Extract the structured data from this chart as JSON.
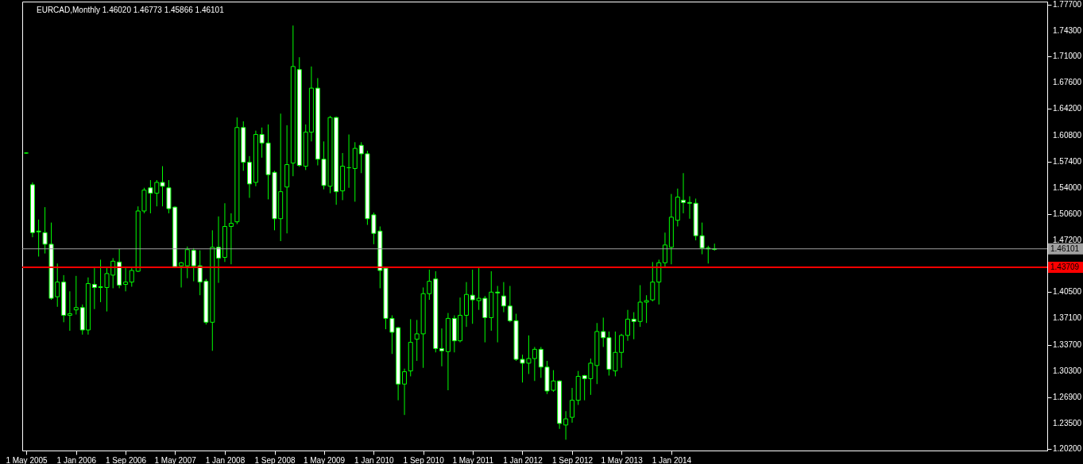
{
  "chart_data": {
    "type": "candlestick",
    "title": "EURCAD,Monthly  1.46020 1.46773 1.45866 1.46101",
    "color": "#00ff00",
    "x": [
      "2005-05",
      "2005-06",
      "2005-07",
      "2005-08",
      "2005-09",
      "2005-10",
      "2005-11",
      "2005-12",
      "2006-01",
      "2006-02",
      "2006-03",
      "2006-04",
      "2006-05",
      "2006-06",
      "2006-07",
      "2006-08",
      "2006-09",
      "2006-10",
      "2006-11",
      "2006-12",
      "2007-01",
      "2007-02",
      "2007-03",
      "2007-04",
      "2007-05",
      "2007-06",
      "2007-07",
      "2007-08",
      "2007-09",
      "2007-10",
      "2007-11",
      "2007-12",
      "2008-01",
      "2008-02",
      "2008-03",
      "2008-04",
      "2008-05",
      "2008-06",
      "2008-07",
      "2008-08",
      "2008-09",
      "2008-10",
      "2008-11",
      "2008-12",
      "2009-01",
      "2009-02",
      "2009-03",
      "2009-04",
      "2009-05",
      "2009-06",
      "2009-07",
      "2009-08",
      "2009-09",
      "2009-10",
      "2009-11",
      "2009-12",
      "2010-01",
      "2010-02",
      "2010-03",
      "2010-04",
      "2010-05",
      "2010-06",
      "2010-07",
      "2010-08",
      "2010-09",
      "2010-10",
      "2010-11",
      "2010-12",
      "2011-01",
      "2011-02",
      "2011-03",
      "2011-04",
      "2011-05",
      "2011-06",
      "2011-07",
      "2011-08",
      "2011-09",
      "2011-10",
      "2011-11",
      "2011-12",
      "2012-01",
      "2012-02",
      "2012-03",
      "2012-04",
      "2012-05",
      "2012-06",
      "2012-07",
      "2012-08",
      "2012-09",
      "2012-10",
      "2012-11",
      "2012-12",
      "2013-01",
      "2013-02",
      "2013-03",
      "2013-04",
      "2013-05",
      "2013-06",
      "2013-07",
      "2013-08",
      "2013-09",
      "2013-10",
      "2013-11",
      "2013-12",
      "2014-01",
      "2014-02",
      "2014-03",
      "2014-04",
      "2014-05",
      "2014-06",
      "2014-07",
      "2014-08"
    ],
    "ohlc": [
      [
        1.585,
        1.586,
        1.584,
        1.585
      ],
      [
        1.544,
        1.547,
        1.476,
        1.482
      ],
      [
        1.484,
        1.499,
        1.451,
        1.483
      ],
      [
        1.482,
        1.515,
        1.455,
        1.467
      ],
      [
        1.467,
        1.495,
        1.395,
        1.397
      ],
      [
        1.399,
        1.442,
        1.386,
        1.418
      ],
      [
        1.418,
        1.427,
        1.366,
        1.375
      ],
      [
        1.375,
        1.406,
        1.355,
        1.377
      ],
      [
        1.382,
        1.426,
        1.376,
        1.385
      ],
      [
        1.385,
        1.389,
        1.35,
        1.356
      ],
      [
        1.356,
        1.424,
        1.35,
        1.416
      ],
      [
        1.415,
        1.436,
        1.383,
        1.411
      ],
      [
        1.411,
        1.447,
        1.392,
        1.412
      ],
      [
        1.411,
        1.436,
        1.38,
        1.429
      ],
      [
        1.427,
        1.449,
        1.41,
        1.445
      ],
      [
        1.444,
        1.461,
        1.41,
        1.414
      ],
      [
        1.415,
        1.436,
        1.406,
        1.418
      ],
      [
        1.418,
        1.436,
        1.412,
        1.433
      ],
      [
        1.432,
        1.516,
        1.431,
        1.51
      ],
      [
        1.51,
        1.54,
        1.507,
        1.537
      ],
      [
        1.54,
        1.55,
        1.507,
        1.533
      ],
      [
        1.533,
        1.55,
        1.516,
        1.547
      ],
      [
        1.547,
        1.568,
        1.516,
        1.542
      ],
      [
        1.54,
        1.55,
        1.507,
        1.513
      ],
      [
        1.515,
        1.516,
        1.436,
        1.438
      ],
      [
        1.439,
        1.444,
        1.411,
        1.443
      ],
      [
        1.439,
        1.464,
        1.423,
        1.46
      ],
      [
        1.459,
        1.462,
        1.419,
        1.439
      ],
      [
        1.439,
        1.459,
        1.401,
        1.418
      ],
      [
        1.419,
        1.422,
        1.363,
        1.366
      ],
      [
        1.366,
        1.485,
        1.329,
        1.463
      ],
      [
        1.463,
        1.503,
        1.417,
        1.449
      ],
      [
        1.45,
        1.52,
        1.444,
        1.49
      ],
      [
        1.49,
        1.507,
        1.441,
        1.494
      ],
      [
        1.496,
        1.631,
        1.493,
        1.618
      ],
      [
        1.618,
        1.626,
        1.562,
        1.573
      ],
      [
        1.573,
        1.581,
        1.527,
        1.545
      ],
      [
        1.547,
        1.614,
        1.542,
        1.609
      ],
      [
        1.609,
        1.618,
        1.579,
        1.598
      ],
      [
        1.598,
        1.622,
        1.525,
        1.557
      ],
      [
        1.56,
        1.562,
        1.485,
        1.5
      ],
      [
        1.5,
        1.636,
        1.471,
        1.535
      ],
      [
        1.541,
        1.621,
        1.481,
        1.57
      ],
      [
        1.572,
        1.75,
        1.555,
        1.697
      ],
      [
        1.693,
        1.709,
        1.567,
        1.569
      ],
      [
        1.568,
        1.622,
        1.563,
        1.612
      ],
      [
        1.612,
        1.697,
        1.6,
        1.669
      ],
      [
        1.669,
        1.682,
        1.569,
        1.577
      ],
      [
        1.577,
        1.6,
        1.538,
        1.543
      ],
      [
        1.542,
        1.633,
        1.533,
        1.631
      ],
      [
        1.631,
        1.632,
        1.518,
        1.535
      ],
      [
        1.536,
        1.585,
        1.524,
        1.568
      ],
      [
        1.566,
        1.609,
        1.54,
        1.566
      ],
      [
        1.565,
        1.599,
        1.522,
        1.591
      ],
      [
        1.595,
        1.599,
        1.559,
        1.584
      ],
      [
        1.584,
        1.588,
        1.492,
        1.5
      ],
      [
        1.505,
        1.508,
        1.467,
        1.481
      ],
      [
        1.484,
        1.49,
        1.41,
        1.433
      ],
      [
        1.436,
        1.436,
        1.357,
        1.371
      ],
      [
        1.371,
        1.375,
        1.325,
        1.353
      ],
      [
        1.359,
        1.36,
        1.265,
        1.286
      ],
      [
        1.286,
        1.306,
        1.246,
        1.302
      ],
      [
        1.303,
        1.37,
        1.296,
        1.34
      ],
      [
        1.344,
        1.369,
        1.316,
        1.351
      ],
      [
        1.351,
        1.411,
        1.307,
        1.403
      ],
      [
        1.403,
        1.434,
        1.395,
        1.419
      ],
      [
        1.422,
        1.432,
        1.327,
        1.332
      ],
      [
        1.332,
        1.358,
        1.309,
        1.329
      ],
      [
        1.328,
        1.378,
        1.278,
        1.371
      ],
      [
        1.371,
        1.375,
        1.327,
        1.342
      ],
      [
        1.342,
        1.398,
        1.34,
        1.375
      ],
      [
        1.375,
        1.418,
        1.36,
        1.402
      ],
      [
        1.401,
        1.434,
        1.364,
        1.395
      ],
      [
        1.394,
        1.436,
        1.382,
        1.397
      ],
      [
        1.397,
        1.4,
        1.34,
        1.372
      ],
      [
        1.372,
        1.432,
        1.355,
        1.405
      ],
      [
        1.405,
        1.413,
        1.34,
        1.404
      ],
      [
        1.4,
        1.418,
        1.379,
        1.387
      ],
      [
        1.387,
        1.413,
        1.366,
        1.368
      ],
      [
        1.368,
        1.377,
        1.316,
        1.318
      ],
      [
        1.318,
        1.324,
        1.288,
        1.313
      ],
      [
        1.313,
        1.349,
        1.299,
        1.319
      ],
      [
        1.319,
        1.334,
        1.29,
        1.331
      ],
      [
        1.331,
        1.334,
        1.294,
        1.308
      ],
      [
        1.308,
        1.316,
        1.273,
        1.277
      ],
      [
        1.278,
        1.304,
        1.276,
        1.29
      ],
      [
        1.29,
        1.291,
        1.228,
        1.235
      ],
      [
        1.233,
        1.251,
        1.214,
        1.241
      ],
      [
        1.243,
        1.281,
        1.236,
        1.265
      ],
      [
        1.265,
        1.303,
        1.259,
        1.296
      ],
      [
        1.297,
        1.298,
        1.265,
        1.293
      ],
      [
        1.293,
        1.319,
        1.272,
        1.313
      ],
      [
        1.31,
        1.365,
        1.286,
        1.354
      ],
      [
        1.354,
        1.372,
        1.334,
        1.346
      ],
      [
        1.346,
        1.354,
        1.297,
        1.305
      ],
      [
        1.303,
        1.354,
        1.296,
        1.327
      ],
      [
        1.327,
        1.351,
        1.307,
        1.349
      ],
      [
        1.349,
        1.382,
        1.342,
        1.37
      ],
      [
        1.37,
        1.379,
        1.344,
        1.367
      ],
      [
        1.367,
        1.414,
        1.36,
        1.392
      ],
      [
        1.392,
        1.401,
        1.365,
        1.394
      ],
      [
        1.395,
        1.444,
        1.393,
        1.418
      ],
      [
        1.418,
        1.447,
        1.389,
        1.443
      ],
      [
        1.443,
        1.482,
        1.438,
        1.466
      ],
      [
        1.463,
        1.532,
        1.441,
        1.502
      ],
      [
        1.498,
        1.539,
        1.49,
        1.528
      ],
      [
        1.524,
        1.559,
        1.507,
        1.521
      ],
      [
        1.521,
        1.529,
        1.5,
        1.52
      ],
      [
        1.52,
        1.526,
        1.472,
        1.478
      ],
      [
        1.478,
        1.495,
        1.454,
        1.462
      ],
      [
        1.462,
        1.465,
        1.442,
        1.461
      ],
      [
        1.4602,
        1.46773,
        1.45866,
        1.46101
      ]
    ],
    "xlim": [
      "2005-05",
      "2019-01"
    ],
    "xticks": [
      {
        "value": "2005-05",
        "label": "1 May 2005"
      },
      {
        "value": "2006-01",
        "label": "1 Jan 2006"
      },
      {
        "value": "2006-09",
        "label": "1 Sep 2006"
      },
      {
        "value": "2007-05",
        "label": "1 May 2007"
      },
      {
        "value": "2008-01",
        "label": "1 Jan 2008"
      },
      {
        "value": "2008-09",
        "label": "1 Sep 2008"
      },
      {
        "value": "2009-05",
        "label": "1 May 2009"
      },
      {
        "value": "2010-01",
        "label": "1 Jan 2010"
      },
      {
        "value": "2010-09",
        "label": "1 Sep 2010"
      },
      {
        "value": "2011-05",
        "label": "1 May 2011"
      },
      {
        "value": "2012-01",
        "label": "1 Jan 2012"
      },
      {
        "value": "2012-09",
        "label": "1 Sep 2012"
      },
      {
        "value": "2013-05",
        "label": "1 May 2013"
      },
      {
        "value": "2014-01",
        "label": "1 Jan 2014"
      }
    ],
    "ylim": [
      1.2,
      1.781
    ],
    "yticks": [
      {
        "value": 1.777,
        "label": "1.77700"
      },
      {
        "value": 1.743,
        "label": "1.74300"
      },
      {
        "value": 1.71,
        "label": "1.71000"
      },
      {
        "value": 1.676,
        "label": "1.67600"
      },
      {
        "value": 1.642,
        "label": "1.64200"
      },
      {
        "value": 1.608,
        "label": "1.60800"
      },
      {
        "value": 1.574,
        "label": "1.57400"
      },
      {
        "value": 1.54,
        "label": "1.54000"
      },
      {
        "value": 1.506,
        "label": "1.50600"
      },
      {
        "value": 1.472,
        "label": "1.47200"
      },
      {
        "value": 1.405,
        "label": "1.40500"
      },
      {
        "value": 1.371,
        "label": "1.37100"
      },
      {
        "value": 1.337,
        "label": "1.33700"
      },
      {
        "value": 1.303,
        "label": "1.30300"
      },
      {
        "value": 1.269,
        "label": "1.26900"
      },
      {
        "value": 1.235,
        "label": "1.23500"
      },
      {
        "value": 1.202,
        "label": "1.20200"
      }
    ],
    "ref_lines": [
      {
        "axis": "y",
        "value": 1.46101,
        "label": "1.46101",
        "color": "#a0a0a0"
      },
      {
        "axis": "y",
        "value": 1.43709,
        "label": "1.43709",
        "color": "#ff0000"
      }
    ]
  }
}
